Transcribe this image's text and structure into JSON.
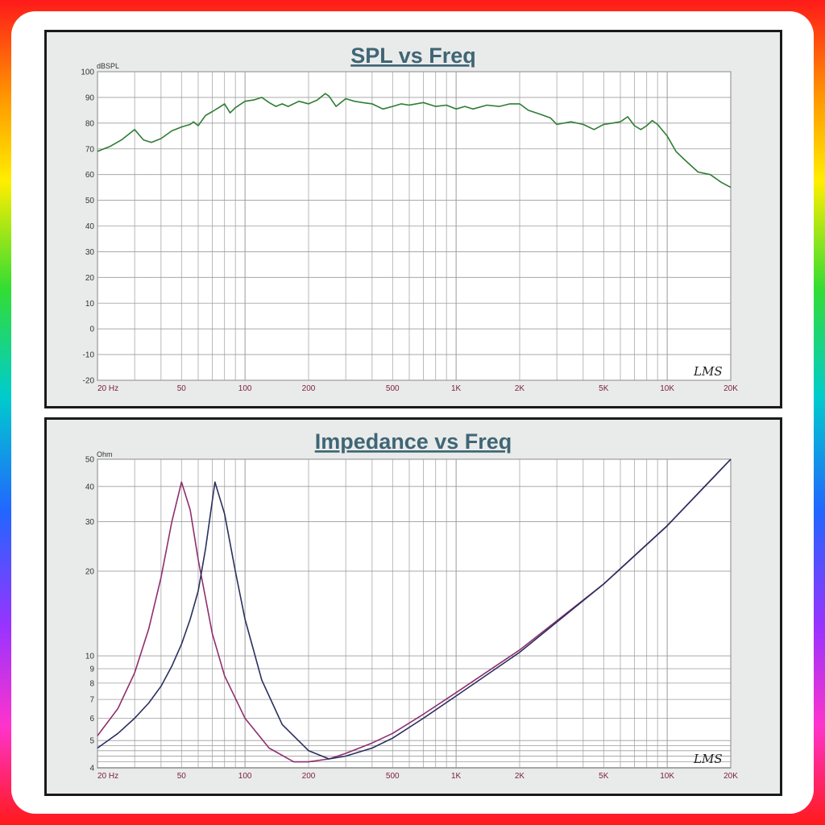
{
  "colors": {
    "spl_line": "#2e7d32",
    "imp_series_a": "#8e2f6e",
    "imp_series_b": "#2a2f5e",
    "grid": "#9c9c9c",
    "title": "#3f6675"
  },
  "chart_data": [
    {
      "type": "line",
      "title": "SPL vs Freq",
      "ylabel": "dBSPL",
      "xlabel": "",
      "x_scale": "log",
      "xlim": [
        20,
        20000
      ],
      "ylim": [
        -20,
        100
      ],
      "grid": true,
      "logo_text": "LMS",
      "x_ticks": [
        {
          "value": 20,
          "label": "20 Hz"
        },
        {
          "value": 50,
          "label": "50"
        },
        {
          "value": 100,
          "label": "100"
        },
        {
          "value": 200,
          "label": "200"
        },
        {
          "value": 500,
          "label": "500"
        },
        {
          "value": 1000,
          "label": "1K"
        },
        {
          "value": 2000,
          "label": "2K"
        },
        {
          "value": 5000,
          "label": "5K"
        },
        {
          "value": 10000,
          "label": "10K"
        },
        {
          "value": 20000,
          "label": "20K"
        }
      ],
      "y_ticks": [
        {
          "value": 100,
          "label": "100"
        },
        {
          "value": 90,
          "label": "90"
        },
        {
          "value": 80,
          "label": "80"
        },
        {
          "value": 70,
          "label": "70"
        },
        {
          "value": 60,
          "label": "60"
        },
        {
          "value": 50,
          "label": "50"
        },
        {
          "value": 40,
          "label": "40"
        },
        {
          "value": 30,
          "label": "30"
        },
        {
          "value": 20,
          "label": "20"
        },
        {
          "value": 10,
          "label": "10"
        },
        {
          "value": 0,
          "label": "0"
        },
        {
          "value": -10,
          "label": "-10"
        },
        {
          "value": -20,
          "label": "-20"
        }
      ],
      "series": [
        {
          "x": [
            20,
            23,
            26,
            30,
            33,
            36,
            40,
            45,
            50,
            55,
            57,
            60,
            65,
            70,
            75,
            80,
            85,
            90,
            100,
            110,
            120,
            130,
            140,
            150,
            160,
            180,
            200,
            220,
            240,
            250,
            270,
            300,
            330,
            360,
            400,
            450,
            500,
            550,
            600,
            700,
            800,
            900,
            1000,
            1100,
            1200,
            1400,
            1600,
            1800,
            2000,
            2200,
            2500,
            2800,
            3000,
            3500,
            4000,
            4500,
            5000,
            5500,
            6000,
            6500,
            7000,
            7500,
            8000,
            8500,
            9000,
            10000,
            11000,
            12000,
            14000,
            16000,
            18000,
            20000
          ],
          "y": [
            69,
            71,
            73.5,
            77.5,
            73.5,
            72.5,
            74,
            77,
            78.5,
            79.5,
            80.5,
            79,
            83,
            84.5,
            86,
            87.5,
            84,
            86,
            88.5,
            89,
            90,
            88,
            86.5,
            87.5,
            86.5,
            88.5,
            87.5,
            89,
            91.5,
            90.5,
            86.5,
            89.5,
            88.5,
            88,
            87.5,
            85.5,
            86.5,
            87.5,
            87,
            88,
            86.5,
            87,
            85.5,
            86.5,
            85.5,
            87,
            86.5,
            87.5,
            87.5,
            85,
            83.5,
            82,
            79.5,
            80.5,
            79.5,
            77.5,
            79.5,
            80,
            80.5,
            82.5,
            79,
            77.5,
            79,
            81,
            79.5,
            75,
            69,
            66,
            61,
            60,
            57,
            55
          ]
        }
      ]
    },
    {
      "type": "line",
      "title": "Impedance vs Freq",
      "ylabel": "Ohm",
      "xlabel": "",
      "x_scale": "log",
      "y_scale": "log",
      "xlim": [
        20,
        20000
      ],
      "ylim": [
        4,
        50
      ],
      "grid": true,
      "logo_text": "LMS",
      "x_ticks": [
        {
          "value": 20,
          "label": "20 Hz"
        },
        {
          "value": 50,
          "label": "50"
        },
        {
          "value": 100,
          "label": "100"
        },
        {
          "value": 200,
          "label": "200"
        },
        {
          "value": 500,
          "label": "500"
        },
        {
          "value": 1000,
          "label": "1K"
        },
        {
          "value": 2000,
          "label": "2K"
        },
        {
          "value": 5000,
          "label": "5K"
        },
        {
          "value": 10000,
          "label": "10K"
        },
        {
          "value": 20000,
          "label": "20K"
        }
      ],
      "y_ticks": [
        {
          "value": 50,
          "label": "50"
        },
        {
          "value": 40,
          "label": "40"
        },
        {
          "value": 30,
          "label": "30"
        },
        {
          "value": 20,
          "label": "20"
        },
        {
          "value": 10,
          "label": "10"
        },
        {
          "value": 9,
          "label": "9"
        },
        {
          "value": 8,
          "label": "8"
        },
        {
          "value": 7,
          "label": "7"
        },
        {
          "value": 6,
          "label": "6"
        },
        {
          "value": 5,
          "label": "5"
        },
        {
          "value": 4,
          "label": "4"
        }
      ],
      "series": [
        {
          "color_key": "imp_series_a",
          "x": [
            20,
            25,
            30,
            35,
            40,
            45,
            50,
            55,
            60,
            70,
            80,
            100,
            130,
            170,
            200,
            250,
            300,
            400,
            500,
            700,
            1000,
            2000,
            5000,
            10000,
            20000
          ],
          "y": [
            5.2,
            6.5,
            8.7,
            12.5,
            19,
            30,
            41.5,
            33,
            22,
            12,
            8.5,
            6,
            4.7,
            4.2,
            4.2,
            4.3,
            4.5,
            4.9,
            5.3,
            6.2,
            7.4,
            10.5,
            18,
            29,
            50
          ]
        },
        {
          "color_key": "imp_series_b",
          "x": [
            20,
            25,
            30,
            35,
            40,
            45,
            50,
            55,
            60,
            65,
            72,
            80,
            90,
            100,
            120,
            150,
            200,
            250,
            300,
            400,
            500,
            700,
            1000,
            2000,
            5000,
            10000,
            20000
          ],
          "y": [
            4.7,
            5.3,
            6,
            6.8,
            7.8,
            9.2,
            11,
            13.5,
            17,
            24,
            41.5,
            32,
            20,
            13.5,
            8.2,
            5.7,
            4.6,
            4.3,
            4.4,
            4.7,
            5.1,
            6,
            7.2,
            10.3,
            18,
            29,
            50
          ]
        }
      ]
    }
  ]
}
